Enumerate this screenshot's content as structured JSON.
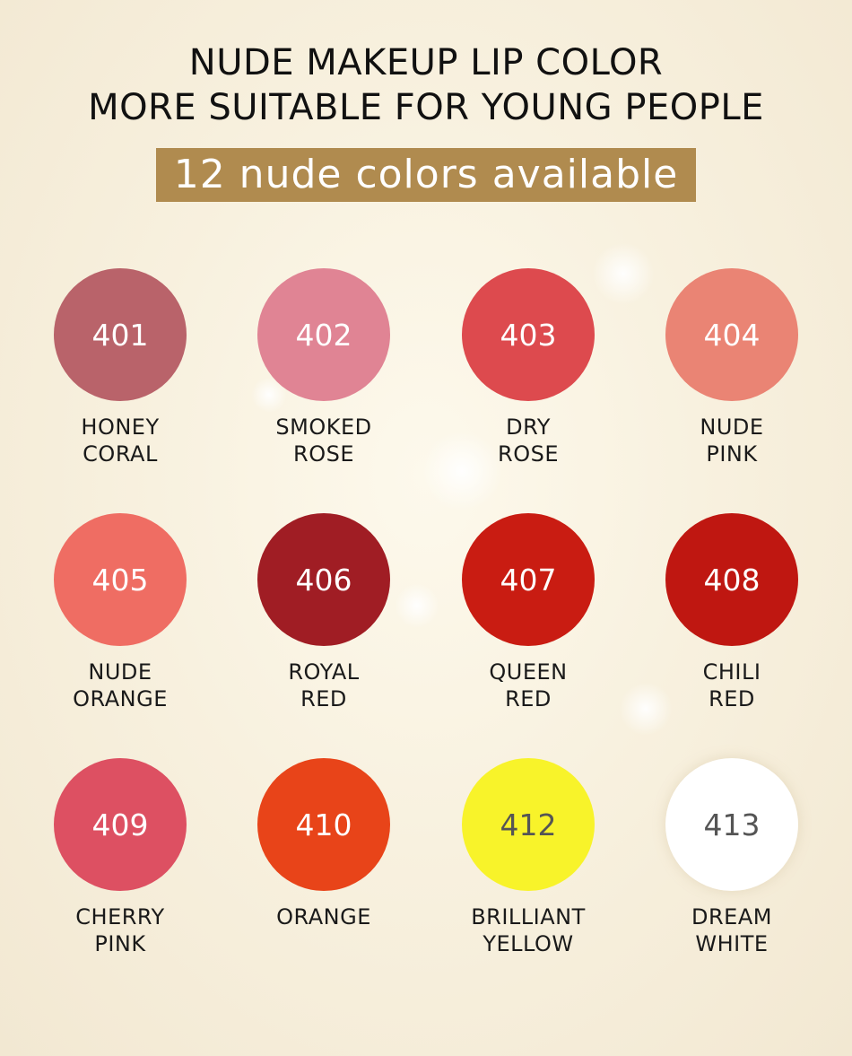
{
  "header": {
    "line1": "NUDE MAKEUP LIP COLOR",
    "line2": "MORE SUITABLE FOR YOUNG PEOPLE",
    "banner": "12 nude colors available",
    "banner_color": "#b08b4f"
  },
  "swatches": [
    {
      "code": "401",
      "name1": "HONEY",
      "name2": "CORAL",
      "color": "#b9636a"
    },
    {
      "code": "402",
      "name1": "SMOKED",
      "name2": "ROSE",
      "color": "#e08494"
    },
    {
      "code": "403",
      "name1": "DRY",
      "name2": "ROSE",
      "color": "#dd4a4e"
    },
    {
      "code": "404",
      "name1": "NUDE",
      "name2": "PINK",
      "color": "#ea8474"
    },
    {
      "code": "405",
      "name1": "NUDE",
      "name2": "ORANGE",
      "color": "#ef6d63"
    },
    {
      "code": "406",
      "name1": "ROYAL",
      "name2": "RED",
      "color": "#a01d24"
    },
    {
      "code": "407",
      "name1": "QUEEN",
      "name2": "RED",
      "color": "#c91c12"
    },
    {
      "code": "408",
      "name1": "CHILI",
      "name2": "RED",
      "color": "#bf1711"
    },
    {
      "code": "409",
      "name1": "CHERRY",
      "name2": "PINK",
      "color": "#dd5062"
    },
    {
      "code": "410",
      "name1": "ORANGE",
      "name2": "",
      "color": "#e84419"
    },
    {
      "code": "412",
      "name1": "BRILLIANT",
      "name2": "YELLOW",
      "color": "#f8f32a"
    },
    {
      "code": "413",
      "name1": "DREAM",
      "name2": "WHITE",
      "color": "#ffffff"
    }
  ]
}
